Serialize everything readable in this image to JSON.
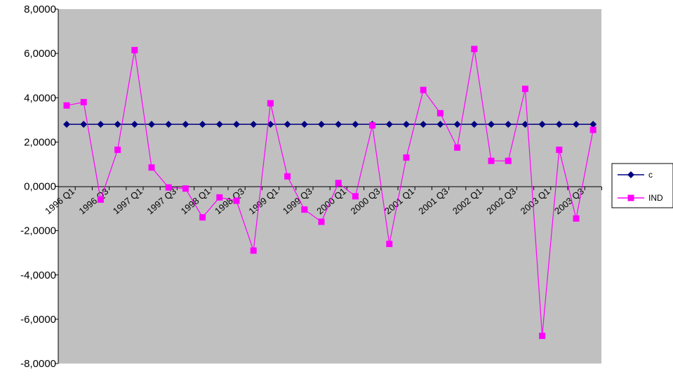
{
  "chart_data": {
    "type": "line",
    "title": "",
    "xlabel": "",
    "ylabel": "",
    "ylim": [
      -8,
      8
    ],
    "grid": false,
    "legend_position": "right",
    "y_tick_labels": [
      "8,0000",
      "6,0000",
      "4,0000",
      "2,0000",
      "0,0000",
      "-2,0000",
      "-4,0000",
      "-6,0000",
      "-8,0000"
    ],
    "y_tick_values": [
      8,
      6,
      4,
      2,
      0,
      -2,
      -4,
      -6,
      -8
    ],
    "x": [
      "1996 Q1",
      "1996 Q2",
      "1996 Q3",
      "1996 Q4",
      "1997 Q1",
      "1997 Q2",
      "1997 Q3",
      "1997 Q4",
      "1998 Q1",
      "1998 Q2",
      "1998 Q3",
      "1998 Q4",
      "1999 Q1",
      "1999 Q2",
      "1999 Q3",
      "1999 Q4",
      "2000 Q1",
      "2000 Q2",
      "2000 Q3",
      "2000 Q4",
      "2001 Q1",
      "2001 Q2",
      "2001 Q3",
      "2001 Q4",
      "2002 Q1",
      "2002 Q2",
      "2002 Q3",
      "2002 Q4",
      "2003 Q1",
      "2003 Q2",
      "2003 Q3",
      "2003 Q4"
    ],
    "x_tick_labels": [
      "1996 Q1",
      "1996 Q3",
      "1997 Q1",
      "1997 Q3",
      "1998 Q1",
      "1998 Q3",
      "1999 Q1",
      "1999 Q3",
      "2000 Q1",
      "2000 Q3",
      "2001 Q1",
      "2001 Q3",
      "2002 Q1",
      "2002 Q3",
      "2003 Q1",
      "2003 Q3"
    ],
    "series": [
      {
        "name": "c",
        "color": "#000080",
        "marker": "diamond",
        "values": [
          2.8,
          2.8,
          2.8,
          2.8,
          2.8,
          2.8,
          2.8,
          2.8,
          2.8,
          2.8,
          2.8,
          2.8,
          2.8,
          2.8,
          2.8,
          2.8,
          2.8,
          2.8,
          2.8,
          2.8,
          2.8,
          2.8,
          2.8,
          2.8,
          2.8,
          2.8,
          2.8,
          2.8,
          2.8,
          2.8,
          2.8,
          2.8
        ]
      },
      {
        "name": "IND",
        "color": "#ff00ff",
        "marker": "square",
        "values": [
          3.65,
          3.8,
          -0.6,
          1.65,
          6.15,
          0.85,
          -0.05,
          -0.1,
          -1.4,
          -0.5,
          -0.65,
          -2.9,
          3.75,
          0.45,
          -1.05,
          -1.6,
          0.15,
          -0.45,
          2.75,
          -2.6,
          1.3,
          4.35,
          3.3,
          1.75,
          6.2,
          1.15,
          1.15,
          4.4,
          -6.75,
          1.65,
          -1.45,
          2.55
        ]
      }
    ]
  },
  "colors": {
    "plot_background": "#c0c0c0",
    "page_background": "#ffffff",
    "axis": "#000000"
  }
}
